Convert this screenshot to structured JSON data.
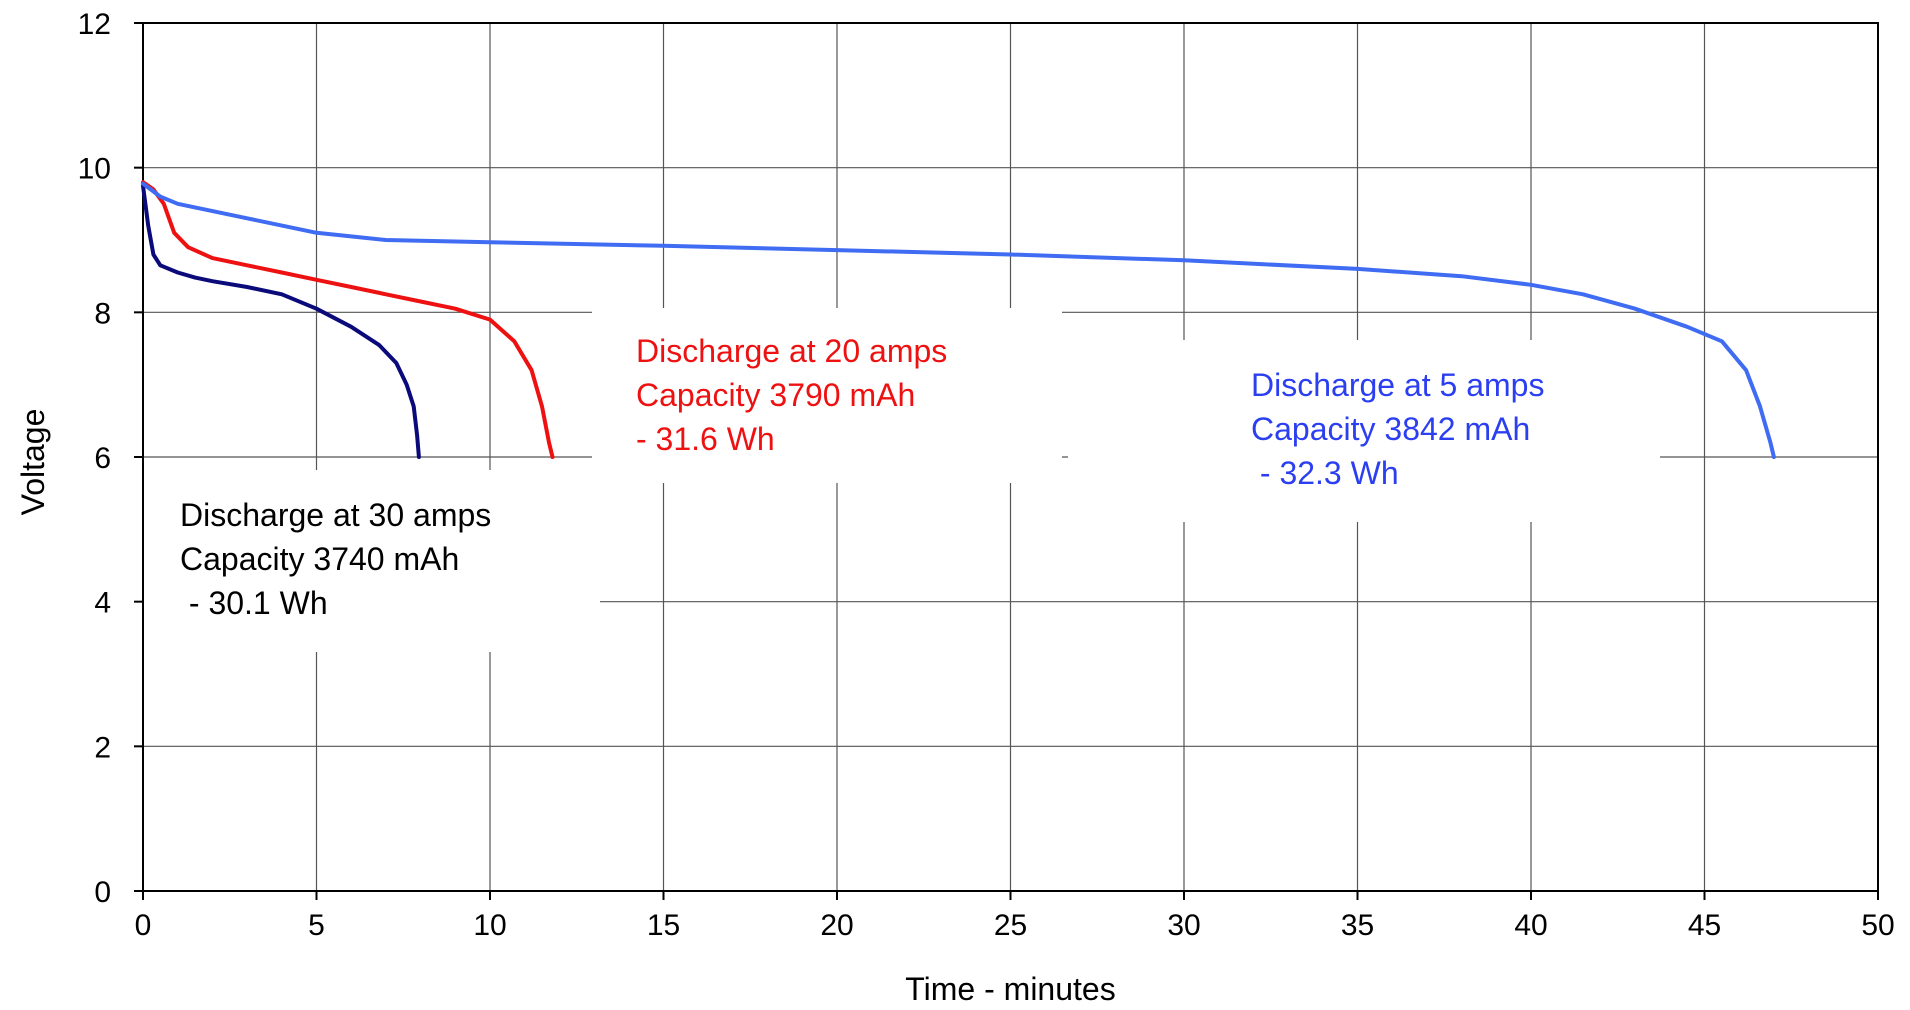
{
  "chart_data": {
    "type": "line",
    "xlabel": "Time - minutes",
    "ylabel": "Voltage",
    "xlim": [
      0,
      50
    ],
    "ylim": [
      0,
      12
    ],
    "x_ticks": [
      "0",
      "5",
      "10",
      "15",
      "20",
      "25",
      "30",
      "35",
      "40",
      "45",
      "50"
    ],
    "y_ticks": [
      "0",
      "2",
      "4",
      "6",
      "8",
      "10",
      "12"
    ],
    "grid": true,
    "series": [
      {
        "color": "#0a0a7a",
        "points": [
          [
            0,
            9.75
          ],
          [
            0.15,
            9.2
          ],
          [
            0.3,
            8.8
          ],
          [
            0.5,
            8.65
          ],
          [
            1,
            8.55
          ],
          [
            1.5,
            8.48
          ],
          [
            2,
            8.43
          ],
          [
            3,
            8.35
          ],
          [
            4,
            8.25
          ],
          [
            5,
            8.05
          ],
          [
            6,
            7.8
          ],
          [
            6.8,
            7.55
          ],
          [
            7.3,
            7.3
          ],
          [
            7.6,
            7.0
          ],
          [
            7.8,
            6.7
          ],
          [
            7.9,
            6.3
          ],
          [
            7.95,
            6.0
          ]
        ]
      },
      {
        "color": "#ee1111",
        "points": [
          [
            0,
            9.8
          ],
          [
            0.3,
            9.7
          ],
          [
            0.6,
            9.5
          ],
          [
            0.9,
            9.1
          ],
          [
            1.3,
            8.9
          ],
          [
            2,
            8.75
          ],
          [
            3,
            8.65
          ],
          [
            4,
            8.55
          ],
          [
            5,
            8.45
          ],
          [
            6,
            8.35
          ],
          [
            7,
            8.25
          ],
          [
            8,
            8.15
          ],
          [
            9,
            8.05
          ],
          [
            10,
            7.9
          ],
          [
            10.7,
            7.6
          ],
          [
            11.2,
            7.2
          ],
          [
            11.5,
            6.7
          ],
          [
            11.7,
            6.2
          ],
          [
            11.8,
            6.0
          ]
        ]
      },
      {
        "color": "#3f6cf2",
        "points": [
          [
            0,
            9.78
          ],
          [
            0.5,
            9.6
          ],
          [
            1,
            9.5
          ],
          [
            2,
            9.4
          ],
          [
            3,
            9.3
          ],
          [
            5,
            9.1
          ],
          [
            7,
            9.0
          ],
          [
            10,
            8.97
          ],
          [
            15,
            8.92
          ],
          [
            20,
            8.86
          ],
          [
            25,
            8.8
          ],
          [
            30,
            8.72
          ],
          [
            35,
            8.6
          ],
          [
            38,
            8.5
          ],
          [
            40,
            8.38
          ],
          [
            41.5,
            8.25
          ],
          [
            43,
            8.05
          ],
          [
            44.5,
            7.8
          ],
          [
            45.5,
            7.6
          ],
          [
            46.2,
            7.2
          ],
          [
            46.6,
            6.7
          ],
          [
            46.9,
            6.2
          ],
          [
            47,
            6.0
          ]
        ]
      }
    ],
    "annotations": [
      {
        "color": "#000000",
        "lines": [
          "Discharge at 30 amps",
          "Capacity 3740 mAh",
          " - 30.1 Wh"
        ]
      },
      {
        "color": "#ee1111",
        "lines": [
          "Discharge at 20 amps",
          "Capacity 3790 mAh",
          "- 31.6 Wh"
        ]
      },
      {
        "color": "#2b3ff0",
        "lines": [
          "Discharge at 5 amps",
          "Capacity 3842 mAh",
          " - 32.3 Wh"
        ]
      }
    ]
  }
}
